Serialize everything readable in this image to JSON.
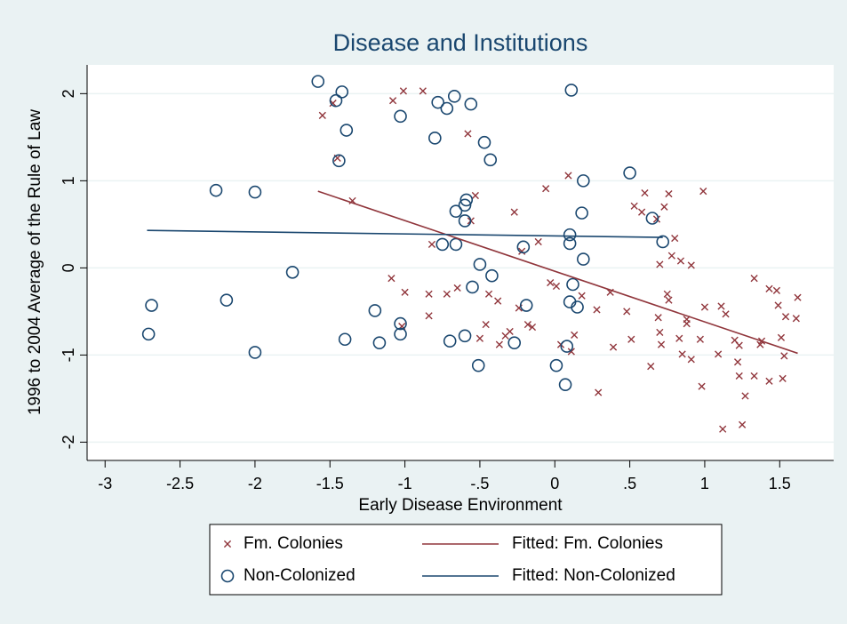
{
  "chart_data": {
    "type": "scatter",
    "title": "Disease and Institutions",
    "x_label": "Early Disease Environment",
    "y_label": "1996 to 2004 Average of the Rule of Law",
    "xlim": [
      -3.12,
      1.86
    ],
    "ylim": [
      -2.21,
      2.33
    ],
    "xticks": [
      -3,
      {
        "value": -2.5,
        "label": "-2.5"
      },
      -2,
      {
        "value": -1.5,
        "label": "-1.5"
      },
      -1,
      {
        "value": -0.5,
        "label": "-.5"
      },
      0,
      {
        "value": 0.5,
        "label": ".5"
      },
      1,
      {
        "value": 1.5,
        "label": "1.5"
      }
    ],
    "yticks": [
      -2,
      -1,
      0,
      1,
      2
    ],
    "grid": true,
    "legend": "bottom",
    "series": [
      {
        "name": "Fm. Colonies",
        "mode": "markers",
        "marker": "x",
        "color": "#90353b",
        "x": [
          -1.55,
          -1.48,
          -1.45,
          -1.35,
          -1.08,
          -1.01,
          -0.88,
          -1.09,
          -1.02,
          -1.0,
          -0.84,
          -0.84,
          -0.82,
          -0.72,
          -0.65,
          -0.58,
          -0.56,
          -0.53,
          -0.5,
          -0.46,
          -0.44,
          -0.38,
          -0.37,
          -0.33,
          -0.3,
          -0.27,
          -0.24,
          -0.22,
          -0.18,
          -0.15,
          -0.11,
          -0.06,
          -0.03,
          0.01,
          0.04,
          0.09,
          0.11,
          0.13,
          0.18,
          0.28,
          0.29,
          0.37,
          0.39,
          0.48,
          0.51,
          0.53,
          0.58,
          0.6,
          0.64,
          0.68,
          0.69,
          0.7,
          0.7,
          0.71,
          0.73,
          0.75,
          0.76,
          0.76,
          0.78,
          0.8,
          0.83,
          0.84,
          0.85,
          0.88,
          0.88,
          0.91,
          0.91,
          0.97,
          0.98,
          0.99,
          1.0,
          1.09,
          1.11,
          1.12,
          1.14,
          1.2,
          1.22,
          1.23,
          1.23,
          1.25,
          1.27,
          1.33,
          1.33,
          1.37,
          1.38,
          1.43,
          1.43,
          1.48,
          1.49,
          1.51,
          1.52,
          1.53,
          1.54,
          1.61,
          1.62
        ],
        "values": [
          1.75,
          1.89,
          1.26,
          0.77,
          1.92,
          2.03,
          2.03,
          -0.12,
          -0.67,
          -0.28,
          -0.3,
          -0.55,
          0.27,
          -0.3,
          -0.23,
          1.54,
          0.54,
          0.83,
          -0.81,
          -0.65,
          -0.3,
          -0.38,
          -0.88,
          -0.78,
          -0.73,
          0.64,
          -0.46,
          0.19,
          -0.65,
          -0.68,
          0.3,
          0.91,
          -0.17,
          -0.21,
          -0.88,
          1.06,
          -0.96,
          -0.77,
          -0.32,
          -0.48,
          -1.43,
          -0.28,
          -0.91,
          -0.5,
          -0.82,
          0.71,
          0.64,
          0.86,
          -1.13,
          0.56,
          -0.57,
          -0.74,
          0.04,
          -0.88,
          0.7,
          -0.3,
          -0.37,
          0.85,
          0.14,
          0.34,
          -0.81,
          0.08,
          -0.99,
          -0.59,
          -0.64,
          0.03,
          -1.05,
          -0.82,
          -1.36,
          0.88,
          -0.45,
          -0.99,
          -0.44,
          -1.85,
          -0.53,
          -0.83,
          -1.08,
          -1.24,
          -0.89,
          -1.8,
          -1.47,
          -0.12,
          -1.24,
          -0.88,
          -0.84,
          -0.24,
          -1.3,
          -0.26,
          -0.43,
          -0.8,
          -1.27,
          -1.01,
          -0.56,
          -0.58,
          -0.34
        ]
      },
      {
        "name": "Non-Colonized",
        "mode": "markers",
        "marker": "circle",
        "color": "#1a476f",
        "x": [
          -1.58,
          -1.42,
          -1.46,
          -1.39,
          -1.44,
          -1.03,
          -0.78,
          -0.72,
          -0.67,
          -0.56,
          -0.8,
          -0.47,
          -0.43,
          0.11,
          0.5,
          -2.26,
          -2.0,
          -1.75,
          -2.69,
          -2.71,
          -2.19,
          -2.0,
          -1.4,
          -1.2,
          -1.17,
          -1.03,
          -1.03,
          -0.75,
          -0.66,
          -0.66,
          -0.6,
          -0.59,
          -0.6,
          -0.7,
          -0.6,
          -0.55,
          -0.5,
          -0.42,
          -0.51,
          -0.27,
          -0.21,
          -0.19,
          0.1,
          0.1,
          0.18,
          0.19,
          0.19,
          0.1,
          0.12,
          0.15,
          0.01,
          0.08,
          0.07,
          0.65,
          0.72
        ],
        "values": [
          2.14,
          2.02,
          1.92,
          1.58,
          1.23,
          1.74,
          1.9,
          1.83,
          1.97,
          1.88,
          1.49,
          1.44,
          1.24,
          2.04,
          1.09,
          0.89,
          0.87,
          -0.05,
          -0.43,
          -0.76,
          -0.37,
          -0.97,
          -0.82,
          -0.49,
          -0.86,
          -0.64,
          -0.76,
          0.27,
          0.65,
          0.27,
          0.72,
          0.78,
          0.54,
          -0.84,
          -0.78,
          -0.22,
          0.04,
          -0.09,
          -1.12,
          -0.86,
          0.24,
          -0.43,
          0.38,
          0.28,
          0.63,
          1.0,
          0.1,
          -0.39,
          -0.19,
          -0.45,
          -1.12,
          -0.9,
          -1.34,
          0.57,
          0.3
        ]
      },
      {
        "name": "Fitted: Fm. Colonies",
        "mode": "line",
        "color": "#90353b",
        "x": [
          -1.58,
          1.62
        ],
        "values": [
          0.88,
          -0.98
        ]
      },
      {
        "name": "Fitted: Non-Colonized",
        "mode": "line",
        "color": "#1a476f",
        "x": [
          -2.72,
          0.72
        ],
        "values": [
          0.43,
          0.35
        ]
      }
    ]
  }
}
